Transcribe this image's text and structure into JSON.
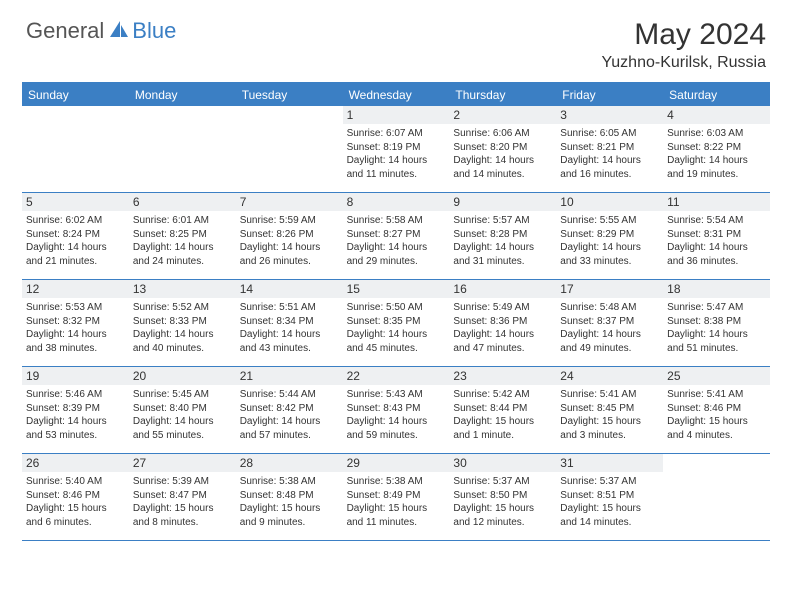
{
  "logo": {
    "part1": "General",
    "part2": "Blue"
  },
  "title": "May 2024",
  "location": "Yuzhno-Kurilsk, Russia",
  "weekdays": [
    "Sunday",
    "Monday",
    "Tuesday",
    "Wednesday",
    "Thursday",
    "Friday",
    "Saturday"
  ],
  "colors": {
    "accent": "#3b7fc4",
    "daynum_bg": "#eef0f2",
    "text": "#333333",
    "background": "#ffffff"
  },
  "weeks": [
    [
      {
        "n": "",
        "sunrise": "",
        "sunset": "",
        "daylight": ""
      },
      {
        "n": "",
        "sunrise": "",
        "sunset": "",
        "daylight": ""
      },
      {
        "n": "",
        "sunrise": "",
        "sunset": "",
        "daylight": ""
      },
      {
        "n": "1",
        "sunrise": "Sunrise: 6:07 AM",
        "sunset": "Sunset: 8:19 PM",
        "daylight": "Daylight: 14 hours and 11 minutes."
      },
      {
        "n": "2",
        "sunrise": "Sunrise: 6:06 AM",
        "sunset": "Sunset: 8:20 PM",
        "daylight": "Daylight: 14 hours and 14 minutes."
      },
      {
        "n": "3",
        "sunrise": "Sunrise: 6:05 AM",
        "sunset": "Sunset: 8:21 PM",
        "daylight": "Daylight: 14 hours and 16 minutes."
      },
      {
        "n": "4",
        "sunrise": "Sunrise: 6:03 AM",
        "sunset": "Sunset: 8:22 PM",
        "daylight": "Daylight: 14 hours and 19 minutes."
      }
    ],
    [
      {
        "n": "5",
        "sunrise": "Sunrise: 6:02 AM",
        "sunset": "Sunset: 8:24 PM",
        "daylight": "Daylight: 14 hours and 21 minutes."
      },
      {
        "n": "6",
        "sunrise": "Sunrise: 6:01 AM",
        "sunset": "Sunset: 8:25 PM",
        "daylight": "Daylight: 14 hours and 24 minutes."
      },
      {
        "n": "7",
        "sunrise": "Sunrise: 5:59 AM",
        "sunset": "Sunset: 8:26 PM",
        "daylight": "Daylight: 14 hours and 26 minutes."
      },
      {
        "n": "8",
        "sunrise": "Sunrise: 5:58 AM",
        "sunset": "Sunset: 8:27 PM",
        "daylight": "Daylight: 14 hours and 29 minutes."
      },
      {
        "n": "9",
        "sunrise": "Sunrise: 5:57 AM",
        "sunset": "Sunset: 8:28 PM",
        "daylight": "Daylight: 14 hours and 31 minutes."
      },
      {
        "n": "10",
        "sunrise": "Sunrise: 5:55 AM",
        "sunset": "Sunset: 8:29 PM",
        "daylight": "Daylight: 14 hours and 33 minutes."
      },
      {
        "n": "11",
        "sunrise": "Sunrise: 5:54 AM",
        "sunset": "Sunset: 8:31 PM",
        "daylight": "Daylight: 14 hours and 36 minutes."
      }
    ],
    [
      {
        "n": "12",
        "sunrise": "Sunrise: 5:53 AM",
        "sunset": "Sunset: 8:32 PM",
        "daylight": "Daylight: 14 hours and 38 minutes."
      },
      {
        "n": "13",
        "sunrise": "Sunrise: 5:52 AM",
        "sunset": "Sunset: 8:33 PM",
        "daylight": "Daylight: 14 hours and 40 minutes."
      },
      {
        "n": "14",
        "sunrise": "Sunrise: 5:51 AM",
        "sunset": "Sunset: 8:34 PM",
        "daylight": "Daylight: 14 hours and 43 minutes."
      },
      {
        "n": "15",
        "sunrise": "Sunrise: 5:50 AM",
        "sunset": "Sunset: 8:35 PM",
        "daylight": "Daylight: 14 hours and 45 minutes."
      },
      {
        "n": "16",
        "sunrise": "Sunrise: 5:49 AM",
        "sunset": "Sunset: 8:36 PM",
        "daylight": "Daylight: 14 hours and 47 minutes."
      },
      {
        "n": "17",
        "sunrise": "Sunrise: 5:48 AM",
        "sunset": "Sunset: 8:37 PM",
        "daylight": "Daylight: 14 hours and 49 minutes."
      },
      {
        "n": "18",
        "sunrise": "Sunrise: 5:47 AM",
        "sunset": "Sunset: 8:38 PM",
        "daylight": "Daylight: 14 hours and 51 minutes."
      }
    ],
    [
      {
        "n": "19",
        "sunrise": "Sunrise: 5:46 AM",
        "sunset": "Sunset: 8:39 PM",
        "daylight": "Daylight: 14 hours and 53 minutes."
      },
      {
        "n": "20",
        "sunrise": "Sunrise: 5:45 AM",
        "sunset": "Sunset: 8:40 PM",
        "daylight": "Daylight: 14 hours and 55 minutes."
      },
      {
        "n": "21",
        "sunrise": "Sunrise: 5:44 AM",
        "sunset": "Sunset: 8:42 PM",
        "daylight": "Daylight: 14 hours and 57 minutes."
      },
      {
        "n": "22",
        "sunrise": "Sunrise: 5:43 AM",
        "sunset": "Sunset: 8:43 PM",
        "daylight": "Daylight: 14 hours and 59 minutes."
      },
      {
        "n": "23",
        "sunrise": "Sunrise: 5:42 AM",
        "sunset": "Sunset: 8:44 PM",
        "daylight": "Daylight: 15 hours and 1 minute."
      },
      {
        "n": "24",
        "sunrise": "Sunrise: 5:41 AM",
        "sunset": "Sunset: 8:45 PM",
        "daylight": "Daylight: 15 hours and 3 minutes."
      },
      {
        "n": "25",
        "sunrise": "Sunrise: 5:41 AM",
        "sunset": "Sunset: 8:46 PM",
        "daylight": "Daylight: 15 hours and 4 minutes."
      }
    ],
    [
      {
        "n": "26",
        "sunrise": "Sunrise: 5:40 AM",
        "sunset": "Sunset: 8:46 PM",
        "daylight": "Daylight: 15 hours and 6 minutes."
      },
      {
        "n": "27",
        "sunrise": "Sunrise: 5:39 AM",
        "sunset": "Sunset: 8:47 PM",
        "daylight": "Daylight: 15 hours and 8 minutes."
      },
      {
        "n": "28",
        "sunrise": "Sunrise: 5:38 AM",
        "sunset": "Sunset: 8:48 PM",
        "daylight": "Daylight: 15 hours and 9 minutes."
      },
      {
        "n": "29",
        "sunrise": "Sunrise: 5:38 AM",
        "sunset": "Sunset: 8:49 PM",
        "daylight": "Daylight: 15 hours and 11 minutes."
      },
      {
        "n": "30",
        "sunrise": "Sunrise: 5:37 AM",
        "sunset": "Sunset: 8:50 PM",
        "daylight": "Daylight: 15 hours and 12 minutes."
      },
      {
        "n": "31",
        "sunrise": "Sunrise: 5:37 AM",
        "sunset": "Sunset: 8:51 PM",
        "daylight": "Daylight: 15 hours and 14 minutes."
      },
      {
        "n": "",
        "sunrise": "",
        "sunset": "",
        "daylight": ""
      }
    ]
  ]
}
